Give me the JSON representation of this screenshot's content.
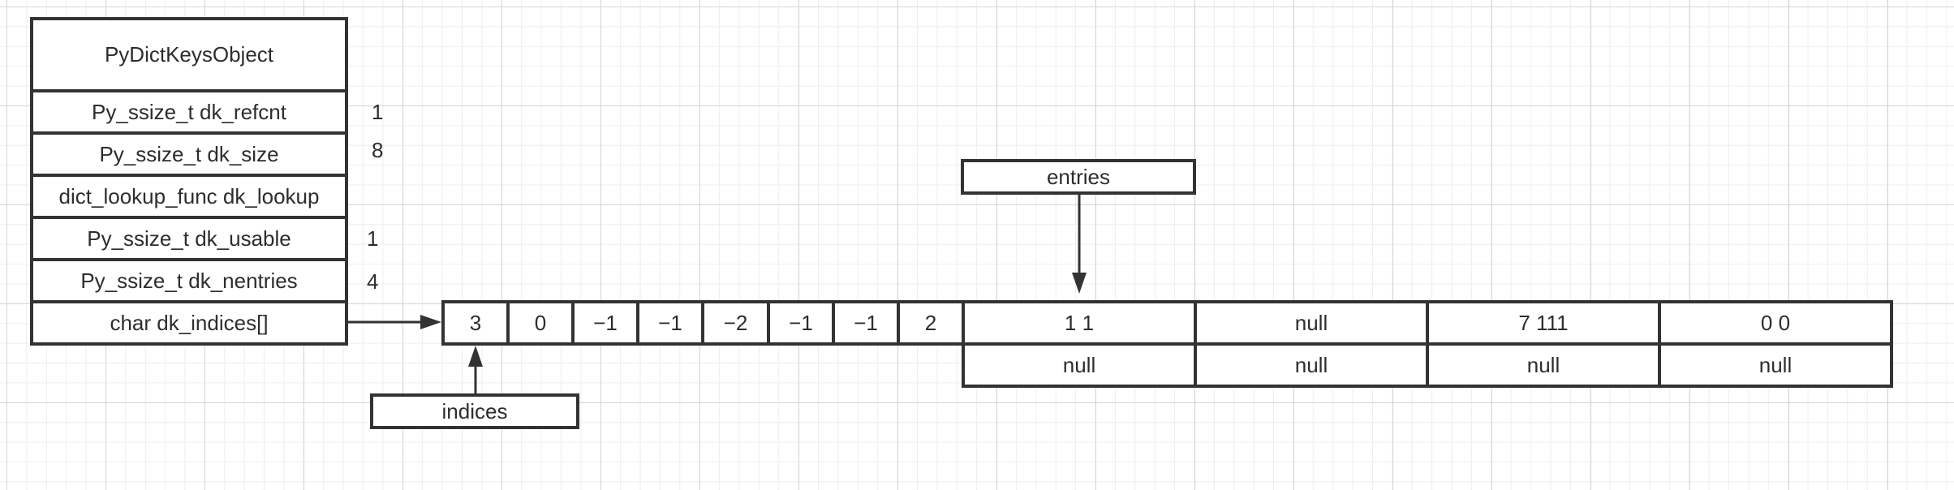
{
  "struct": {
    "title": "PyDictKeysObject",
    "fields": [
      {
        "label": "Py_ssize_t dk_refcnt",
        "value": "1"
      },
      {
        "label": "Py_ssize_t dk_size",
        "value": "8"
      },
      {
        "label": "dict_lookup_func dk_lookup",
        "value": ""
      },
      {
        "label": "Py_ssize_t dk_usable",
        "value": "1"
      },
      {
        "label": "Py_ssize_t dk_nentries",
        "value": "4"
      },
      {
        "label": "char dk_indices[]",
        "value": ""
      }
    ]
  },
  "indices": {
    "label": "indices",
    "cells": [
      "3",
      "0",
      "−1",
      "−1",
      "−2",
      "−1",
      "−1",
      "2"
    ]
  },
  "entries": {
    "label": "entries",
    "top": [
      "1 1",
      "null",
      "7 111",
      "0 0"
    ],
    "bottom": [
      "null",
      "null",
      "null",
      "null"
    ]
  },
  "colors": {
    "line": "#333333",
    "text": "#2d2d2d",
    "grid": "#d6d6d6"
  }
}
